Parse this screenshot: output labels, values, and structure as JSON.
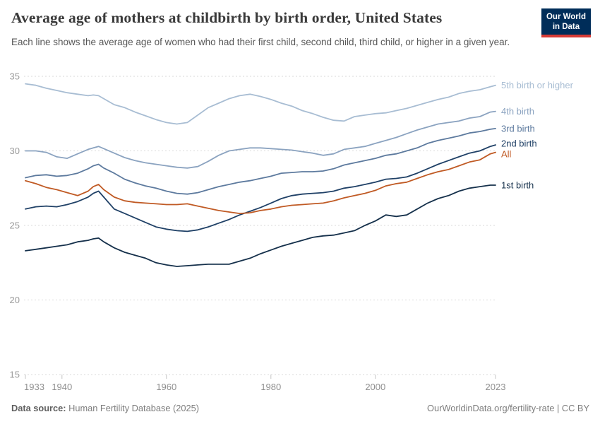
{
  "header": {
    "title": "Average age of mothers at childbirth by birth order, United States",
    "subtitle": "Each line shows the average age of women who had their first child, second child, third child, or higher in a given year.",
    "logo": {
      "line1": "Our World",
      "line2": "in Data"
    }
  },
  "footer": {
    "source_label": "Data source:",
    "source_value": " Human Fertility Database (2025)",
    "right_text": "OurWorldinData.org/fertility-rate | CC BY"
  },
  "colors": {
    "logo_bg": "#002d59",
    "logo_stripe": "#d63b36",
    "grid": "#dadada",
    "tick": "#c4c4c4",
    "axis_label": "#9b9b9b",
    "accent_orange": "#c05a24"
  },
  "chart_data": {
    "type": "line",
    "title": "Average age of mothers at childbirth by birth order, United States",
    "xlabel": "",
    "ylabel": "",
    "xlim": [
      1933,
      2023
    ],
    "ylim": [
      15,
      35
    ],
    "yticks": [
      15,
      20,
      25,
      30,
      35
    ],
    "xticks": [
      1933,
      1940,
      1960,
      1980,
      2000,
      2023
    ],
    "grid": "dashed-horizontal",
    "legend_position": "right-end-labels",
    "x": [
      1933,
      1935,
      1937,
      1939,
      1941,
      1943,
      1945,
      1946,
      1947,
      1948,
      1950,
      1952,
      1954,
      1956,
      1958,
      1960,
      1962,
      1964,
      1966,
      1968,
      1970,
      1972,
      1974,
      1976,
      1978,
      1980,
      1982,
      1984,
      1986,
      1988,
      1990,
      1992,
      1994,
      1996,
      1998,
      2000,
      2002,
      2004,
      2006,
      2008,
      2010,
      2012,
      2014,
      2016,
      2018,
      2020,
      2022,
      2023
    ],
    "series": [
      {
        "name": "5th birth or higher",
        "color": "#a8bdd3",
        "values": [
          34.5,
          34.4,
          34.2,
          34.05,
          33.9,
          33.8,
          33.7,
          33.75,
          33.7,
          33.5,
          33.1,
          32.9,
          32.6,
          32.35,
          32.1,
          31.9,
          31.8,
          31.9,
          32.4,
          32.9,
          33.2,
          33.5,
          33.7,
          33.8,
          33.65,
          33.45,
          33.2,
          33.0,
          32.7,
          32.5,
          32.25,
          32.05,
          32.0,
          32.3,
          32.4,
          32.5,
          32.55,
          32.7,
          32.85,
          33.05,
          33.25,
          33.45,
          33.6,
          33.85,
          34.0,
          34.1,
          34.3,
          34.4
        ]
      },
      {
        "name": "4th birth",
        "color": "#8ba3c0",
        "values": [
          30.0,
          30.0,
          29.9,
          29.6,
          29.5,
          29.8,
          30.1,
          30.2,
          30.3,
          30.15,
          29.85,
          29.55,
          29.35,
          29.2,
          29.1,
          29.0,
          28.9,
          28.85,
          28.95,
          29.3,
          29.7,
          30.0,
          30.1,
          30.2,
          30.2,
          30.15,
          30.1,
          30.05,
          29.95,
          29.85,
          29.7,
          29.8,
          30.1,
          30.2,
          30.3,
          30.5,
          30.7,
          30.9,
          31.15,
          31.4,
          31.6,
          31.8,
          31.9,
          32.0,
          32.2,
          32.3,
          32.6,
          32.65
        ]
      },
      {
        "name": "3rd birth",
        "color": "#5d7a9e",
        "values": [
          28.2,
          28.35,
          28.4,
          28.3,
          28.35,
          28.5,
          28.8,
          29.0,
          29.1,
          28.85,
          28.5,
          28.1,
          27.85,
          27.65,
          27.5,
          27.3,
          27.15,
          27.1,
          27.2,
          27.4,
          27.6,
          27.75,
          27.9,
          28.0,
          28.15,
          28.3,
          28.5,
          28.55,
          28.6,
          28.6,
          28.65,
          28.8,
          29.05,
          29.2,
          29.35,
          29.5,
          29.7,
          29.8,
          30.0,
          30.2,
          30.5,
          30.7,
          30.85,
          31.0,
          31.2,
          31.3,
          31.45,
          31.5
        ]
      },
      {
        "name": "2nd birth",
        "color": "#1f4066",
        "values": [
          26.1,
          26.25,
          26.3,
          26.25,
          26.4,
          26.6,
          26.9,
          27.15,
          27.3,
          26.9,
          26.1,
          25.8,
          25.5,
          25.2,
          24.9,
          24.75,
          24.65,
          24.6,
          24.7,
          24.9,
          25.15,
          25.4,
          25.7,
          25.95,
          26.2,
          26.5,
          26.8,
          27.0,
          27.1,
          27.15,
          27.2,
          27.3,
          27.5,
          27.6,
          27.75,
          27.9,
          28.1,
          28.15,
          28.25,
          28.5,
          28.8,
          29.1,
          29.35,
          29.6,
          29.85,
          30.0,
          30.3,
          30.4
        ]
      },
      {
        "name": "All",
        "color": "#c05a24",
        "values": [
          28.0,
          27.8,
          27.55,
          27.4,
          27.2,
          27.0,
          27.3,
          27.6,
          27.75,
          27.4,
          26.9,
          26.65,
          26.55,
          26.5,
          26.45,
          26.4,
          26.4,
          26.45,
          26.3,
          26.15,
          26.0,
          25.9,
          25.8,
          25.85,
          26.0,
          26.1,
          26.25,
          26.35,
          26.4,
          26.45,
          26.5,
          26.65,
          26.85,
          27.0,
          27.15,
          27.35,
          27.65,
          27.8,
          27.9,
          28.15,
          28.4,
          28.6,
          28.75,
          29.0,
          29.25,
          29.4,
          29.8,
          29.9
        ]
      },
      {
        "name": "1st birth",
        "color": "#15304b",
        "values": [
          23.3,
          23.4,
          23.5,
          23.6,
          23.7,
          23.9,
          24.0,
          24.1,
          24.15,
          23.9,
          23.5,
          23.2,
          23.0,
          22.8,
          22.5,
          22.35,
          22.25,
          22.3,
          22.35,
          22.4,
          22.4,
          22.4,
          22.6,
          22.8,
          23.1,
          23.35,
          23.6,
          23.8,
          24.0,
          24.2,
          24.3,
          24.35,
          24.5,
          24.65,
          25.0,
          25.3,
          25.7,
          25.6,
          25.7,
          26.1,
          26.5,
          26.8,
          27.0,
          27.3,
          27.5,
          27.6,
          27.7,
          27.7
        ]
      }
    ]
  }
}
